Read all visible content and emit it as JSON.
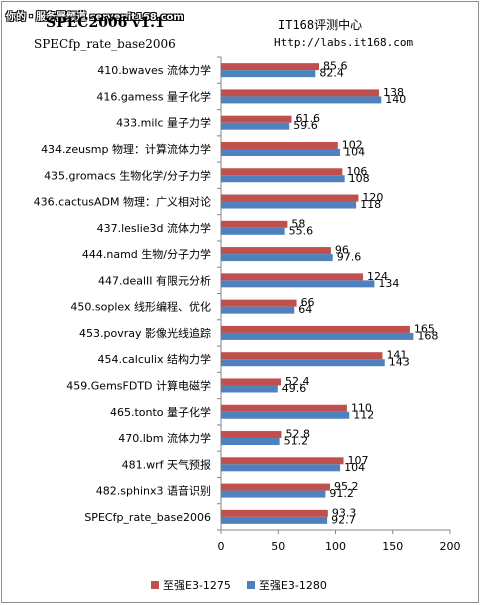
{
  "header": {
    "watermark": "你的・服务器频道 server.it168.com",
    "title": "SPEC2006 v1.1",
    "subtitle": "SPECfp_rate_base2006",
    "brand": "IT168评测中心",
    "url": "Http://labs.it168.com"
  },
  "chart_data": {
    "type": "bar",
    "orientation": "horizontal",
    "categories": [
      "410.bwaves 流体力学",
      "416.gamess 量子化学",
      "433.milc 量子力学",
      "434.zeusmp 物理：计算流体力学",
      "435.gromacs 生物化学/分子力学",
      "436.cactusADM 物理：广义相对论",
      "437.leslie3d 流体力学",
      "444.namd 生物/分子力学",
      "447.dealII 有限元分析",
      "450.soplex 线形编程、优化",
      "453.povray 影像光线追踪",
      "454.calculix 结构力学",
      "459.GemsFDTD 计算电磁学",
      "465.tonto 量子化学",
      "470.lbm 流体力学",
      "481.wrf 天气预报",
      "482.sphinx3 语音识别",
      "SPECfp_rate_base2006"
    ],
    "series": [
      {
        "name": "至强E3-1275",
        "color": "#c0504d",
        "values": [
          85.6,
          138,
          61.6,
          102,
          106,
          120,
          58,
          96,
          124,
          66,
          165,
          141,
          52.4,
          110,
          52.8,
          107,
          95.2,
          93.3
        ],
        "labels": [
          "85.6",
          "138",
          "61.6",
          "102",
          "106",
          "120",
          "58",
          "96",
          "124",
          "66",
          "165",
          "141",
          "52.4",
          "110",
          "52.8",
          "107",
          "95.2",
          "93.3"
        ]
      },
      {
        "name": "至强E3-1280",
        "color": "#4f81bd",
        "values": [
          82.4,
          140,
          59.6,
          104,
          108,
          118,
          55.6,
          97.6,
          134,
          64,
          168,
          143,
          49.6,
          112,
          51.2,
          104,
          91.2,
          92.7
        ],
        "labels": [
          "82.4",
          "140",
          "59.6",
          "104",
          "108",
          "118",
          "55.6",
          "97.6",
          "134",
          "64",
          "168",
          "143",
          "49.6",
          "112",
          "51.2",
          "104",
          "91.2",
          "92.7"
        ]
      }
    ],
    "xlim": [
      0,
      200
    ],
    "xticks": [
      "0",
      "50",
      "100",
      "150",
      "200"
    ],
    "grid": false,
    "legend_position": "bottom"
  }
}
